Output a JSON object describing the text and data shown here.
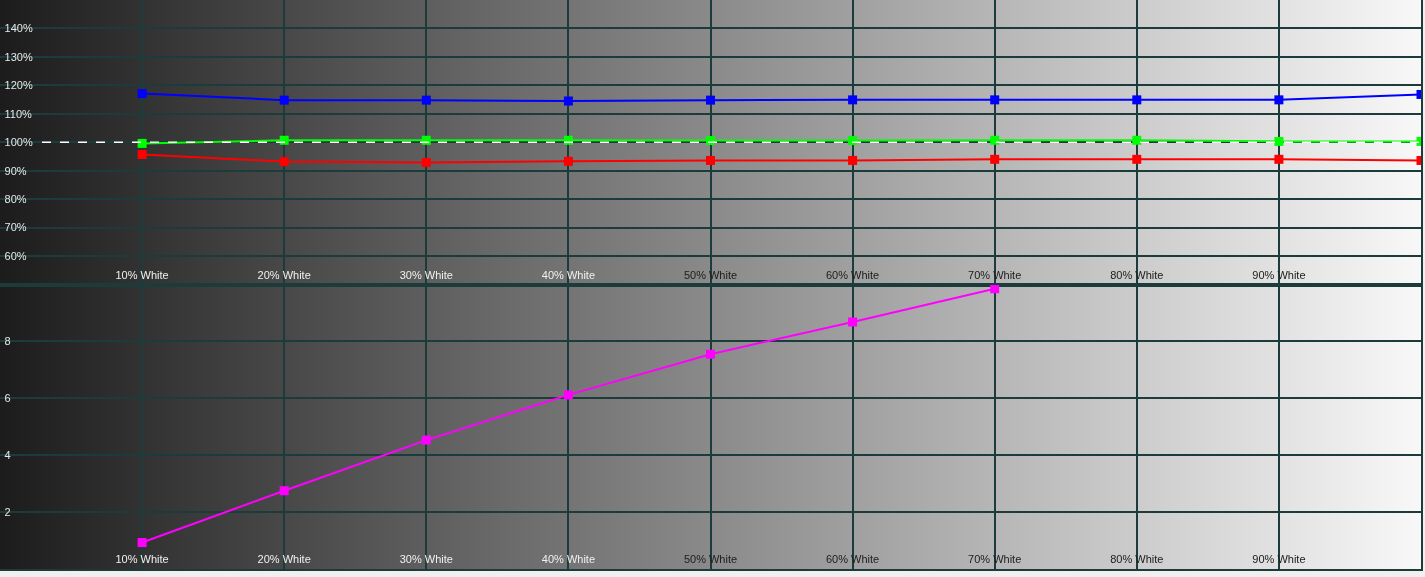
{
  "chart_data": [
    {
      "type": "line",
      "x": [
        10,
        20,
        30,
        40,
        50,
        60,
        70,
        80,
        90,
        100
      ],
      "xlim": [
        0,
        100
      ],
      "xticks": [
        {
          "value": 10,
          "label": "10% White"
        },
        {
          "value": 20,
          "label": "20% White"
        },
        {
          "value": 30,
          "label": "30% White"
        },
        {
          "value": 40,
          "label": "40% White"
        },
        {
          "value": 50,
          "label": "50% White"
        },
        {
          "value": 60,
          "label": "60% White"
        },
        {
          "value": 70,
          "label": "70% White"
        },
        {
          "value": 80,
          "label": "80% White"
        },
        {
          "value": 90,
          "label": "90% White"
        }
      ],
      "ylim": [
        50,
        150
      ],
      "yticks": [
        {
          "value": 60,
          "label": "60%"
        },
        {
          "value": 70,
          "label": "70%"
        },
        {
          "value": 80,
          "label": "80%"
        },
        {
          "value": 90,
          "label": "90%"
        },
        {
          "value": 100,
          "label": "100%"
        },
        {
          "value": 110,
          "label": "110%"
        },
        {
          "value": 120,
          "label": "120%"
        },
        {
          "value": 130,
          "label": "130%"
        },
        {
          "value": 140,
          "label": "140%"
        }
      ],
      "series": [
        {
          "color": "#ff0000",
          "values": [
            95.7,
            93.2,
            92.9,
            93.3,
            93.6,
            93.6,
            94.0,
            94.0,
            94.0,
            93.6
          ]
        },
        {
          "color": "#00ff00",
          "values": [
            99.6,
            100.7,
            100.7,
            100.7,
            100.6,
            100.6,
            100.7,
            100.7,
            100.3,
            100.3
          ]
        },
        {
          "color": "#0000ff",
          "values": [
            117.1,
            114.8,
            114.8,
            114.5,
            114.8,
            114.9,
            114.9,
            114.9,
            114.9,
            116.8
          ]
        }
      ],
      "ref_lines": [
        {
          "axis": "y",
          "value": 100,
          "color": "#ffffff",
          "line_style": "dashed"
        }
      ],
      "marker": "square",
      "grid": true
    },
    {
      "type": "line",
      "x": [
        10,
        20,
        30,
        40,
        50,
        60,
        70
      ],
      "xlim": [
        0,
        100
      ],
      "xticks": [
        {
          "value": 10,
          "label": "10% White"
        },
        {
          "value": 20,
          "label": "20% White"
        },
        {
          "value": 30,
          "label": "30% White"
        },
        {
          "value": 40,
          "label": "40% White"
        },
        {
          "value": 50,
          "label": "50% White"
        },
        {
          "value": 60,
          "label": "60% White"
        },
        {
          "value": 70,
          "label": "70% White"
        },
        {
          "value": 80,
          "label": "80% White"
        },
        {
          "value": 90,
          "label": "90% White"
        }
      ],
      "ylim": [
        0,
        10
      ],
      "yticks": [
        2,
        4,
        6,
        8
      ],
      "series": [
        {
          "color": "#ff00ff",
          "values": [
            0.93,
            2.75,
            4.53,
            6.12,
            7.55,
            8.68,
            9.85
          ]
        }
      ],
      "marker": "square",
      "grid": true
    }
  ]
}
